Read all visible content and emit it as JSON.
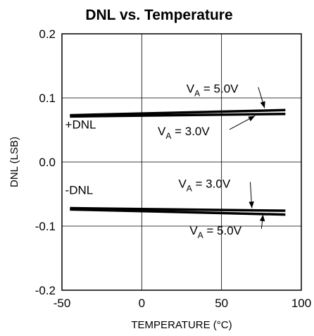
{
  "chart_data": {
    "type": "line",
    "title": "DNL vs. Temperature",
    "xlabel": "TEMPERATURE (°C)",
    "ylabel": "DNL (LSB)",
    "xlim": [
      -50,
      100
    ],
    "ylim": [
      -0.2,
      0.2
    ],
    "x_ticks": [
      "-50",
      "0",
      "50",
      "100"
    ],
    "y_ticks": [
      "0.2",
      "0.1",
      "0.0",
      "-0.1",
      "-0.2"
    ],
    "x_tick_values": [
      -50,
      0,
      50,
      100
    ],
    "y_tick_values": [
      0.2,
      0.1,
      0,
      -0.1,
      -0.2
    ],
    "grid": true,
    "group_labels": {
      "pos": {
        "text": "+DNL",
        "x": -48,
        "y": 0.052
      },
      "neg": {
        "text": "-DNL",
        "x": -48,
        "y": -0.05
      }
    },
    "series": [
      {
        "name": "+DNL, VA = 5.0V",
        "x": [
          -45,
          90
        ],
        "y": [
          0.073,
          0.081
        ]
      },
      {
        "name": "+DNL, VA = 3.0V",
        "x": [
          -45,
          90
        ],
        "y": [
          0.071,
          0.075
        ]
      },
      {
        "name": "-DNL, VA = 3.0V",
        "x": [
          -45,
          90
        ],
        "y": [
          -0.072,
          -0.076
        ]
      },
      {
        "name": "-DNL, VA = 5.0V",
        "x": [
          -45,
          90
        ],
        "y": [
          -0.074,
          -0.082
        ]
      }
    ],
    "annotations": [
      {
        "main": "V",
        "sub": "A",
        "rest": " = 5.0V",
        "x": 28,
        "y": 0.108,
        "arrow_to": [
          77,
          0.084
        ]
      },
      {
        "main": "V",
        "sub": "A",
        "rest": " = 3.0V",
        "x": 10,
        "y": 0.042,
        "arrow_to": [
          71,
          0.072
        ]
      },
      {
        "main": "V",
        "sub": "A",
        "rest": " = 3.0V",
        "x": 23,
        "y": -0.04,
        "arrow_to": [
          69,
          -0.072
        ]
      },
      {
        "main": "V",
        "sub": "A",
        "rest": " = 5.0V",
        "x": 30,
        "y": -0.113,
        "arrow_to": [
          76,
          -0.082
        ]
      }
    ]
  }
}
